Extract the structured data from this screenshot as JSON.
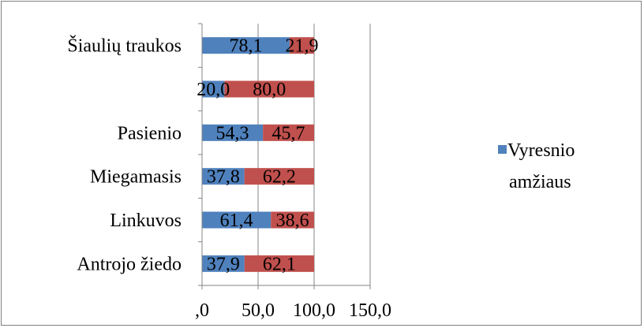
{
  "chart_data": {
    "type": "bar",
    "orientation": "horizontal",
    "stacked": true,
    "categories": [
      "Antrojo žiedo",
      "Linkuvos",
      "Miegamasis",
      "Pasienio",
      "",
      "Šiaulių traukos"
    ],
    "series": [
      {
        "name": "Vyresnio amžiaus",
        "color": "#4F81BD",
        "values": [
          37.9,
          61.4,
          37.8,
          54.3,
          20.0,
          78.1
        ],
        "labels": [
          "37,9",
          "61,4",
          "37,8",
          "54,3",
          "20,0",
          "78,1"
        ]
      },
      {
        "color": "#C0504D",
        "values": [
          62.1,
          38.6,
          62.2,
          45.7,
          80.0,
          21.9
        ],
        "labels": [
          "62,1",
          "38,6",
          "62,2",
          "45,7",
          "80,0",
          "21,9"
        ]
      }
    ],
    "xlim": [
      0,
      150
    ],
    "xticks": [
      0,
      50,
      100,
      150
    ],
    "xtick_labels": [
      ",0",
      "50,0",
      "100,0",
      "150,0"
    ],
    "grid": "vertical",
    "legend": {
      "position": "right",
      "entries": [
        {
          "text_lines": [
            "Vyresnio",
            "amžiaus"
          ],
          "color": "#4F81BD"
        }
      ]
    }
  }
}
